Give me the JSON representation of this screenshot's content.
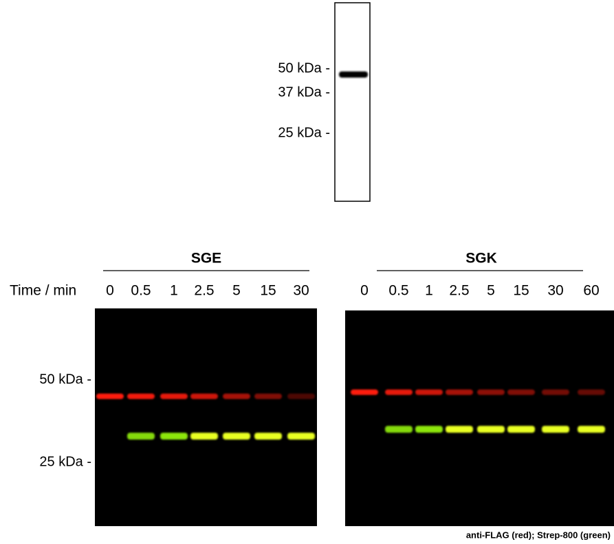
{
  "top_blot": {
    "markers": [
      "50 kDa -",
      "37 kDa -",
      "25 kDa -"
    ]
  },
  "time_label": "Time / min",
  "panels": [
    {
      "title": "SGE",
      "lanes": [
        "0",
        "0.5",
        "1",
        "2.5",
        "5",
        "15",
        "30"
      ]
    },
    {
      "title": "SGK",
      "lanes": [
        "0",
        "0.5",
        "1",
        "2.5",
        "5",
        "15",
        "30",
        "60"
      ]
    }
  ],
  "bottom_markers": [
    "50 kDa -",
    "25 kDa -"
  ],
  "caption": "anti-FLAG (red); Strep-800 (green)"
}
